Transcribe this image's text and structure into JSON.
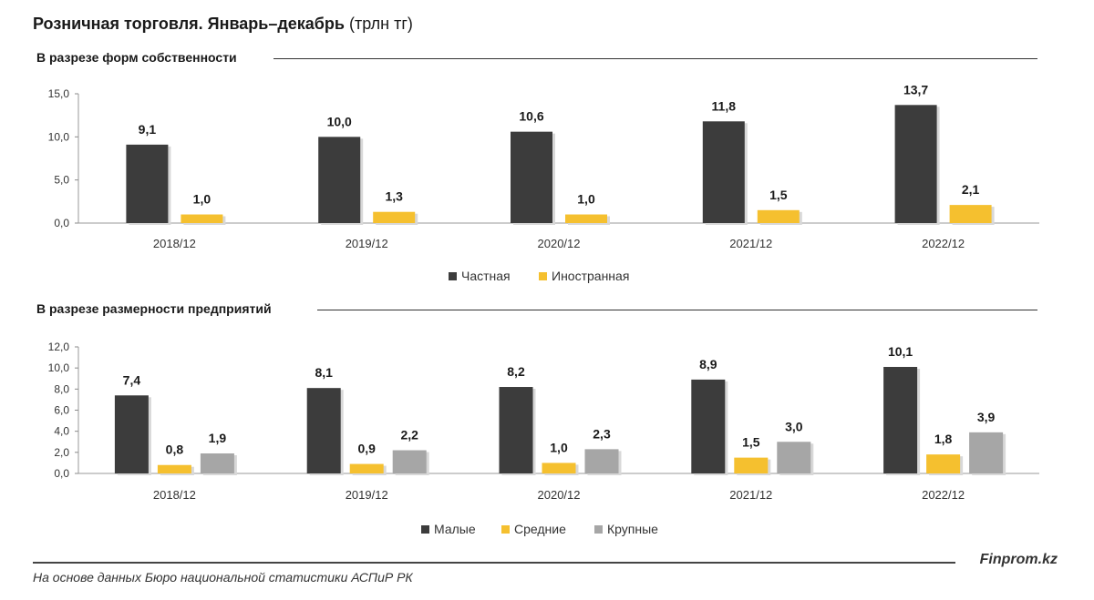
{
  "header": {
    "title_bold": "Розничная торговля. Январь–декабрь",
    "title_unit": "(трлн тг)"
  },
  "footer": {
    "brand": "Finprom.kz",
    "source": "На основе данных Бюро национальной статистики АСПиР РК"
  },
  "colors": {
    "dark": "#3c3c3c",
    "yellow": "#f5c02f",
    "gray": "#a6a6a6"
  },
  "chart_data": [
    {
      "type": "bar",
      "title": "В разрезе форм собственности",
      "categories": [
        "2018/12",
        "2019/12",
        "2020/12",
        "2021/12",
        "2022/12"
      ],
      "series": [
        {
          "name": "Частная",
          "color": "#3c3c3c",
          "values": [
            9.1,
            10.0,
            10.6,
            11.8,
            13.7
          ],
          "labels": [
            "9,1",
            "10,0",
            "10,6",
            "11,8",
            "13,7"
          ]
        },
        {
          "name": "Иностранная",
          "color": "#f5c02f",
          "values": [
            1.0,
            1.3,
            1.0,
            1.5,
            2.1
          ],
          "labels": [
            "1,0",
            "1,3",
            "1,0",
            "1,5",
            "2,1"
          ]
        }
      ],
      "ylim": [
        0,
        15
      ],
      "yticks": [
        "0,0",
        "5,0",
        "10,0",
        "15,0"
      ],
      "ytick_values": [
        0,
        5,
        10,
        15
      ],
      "legend_position": "bottom-center"
    },
    {
      "type": "bar",
      "title": "В разрезе размерности предприятий",
      "categories": [
        "2018/12",
        "2019/12",
        "2020/12",
        "2021/12",
        "2022/12"
      ],
      "series": [
        {
          "name": "Малые",
          "color": "#3c3c3c",
          "values": [
            7.4,
            8.1,
            8.2,
            8.9,
            10.1
          ],
          "labels": [
            "7,4",
            "8,1",
            "8,2",
            "8,9",
            "10,1"
          ]
        },
        {
          "name": "Средние",
          "color": "#f5c02f",
          "values": [
            0.8,
            0.9,
            1.0,
            1.5,
            1.8
          ],
          "labels": [
            "0,8",
            "0,9",
            "1,0",
            "1,5",
            "1,8"
          ]
        },
        {
          "name": "Крупные",
          "color": "#a6a6a6",
          "values": [
            1.9,
            2.2,
            2.3,
            3.0,
            3.9
          ],
          "labels": [
            "1,9",
            "2,2",
            "2,3",
            "3,0",
            "3,9"
          ]
        }
      ],
      "ylim": [
        0,
        12
      ],
      "yticks": [
        "0,0",
        "2,0",
        "4,0",
        "6,0",
        "8,0",
        "10,0",
        "12,0"
      ],
      "ytick_values": [
        0,
        2,
        4,
        6,
        8,
        10,
        12
      ],
      "legend_position": "bottom-center"
    }
  ]
}
